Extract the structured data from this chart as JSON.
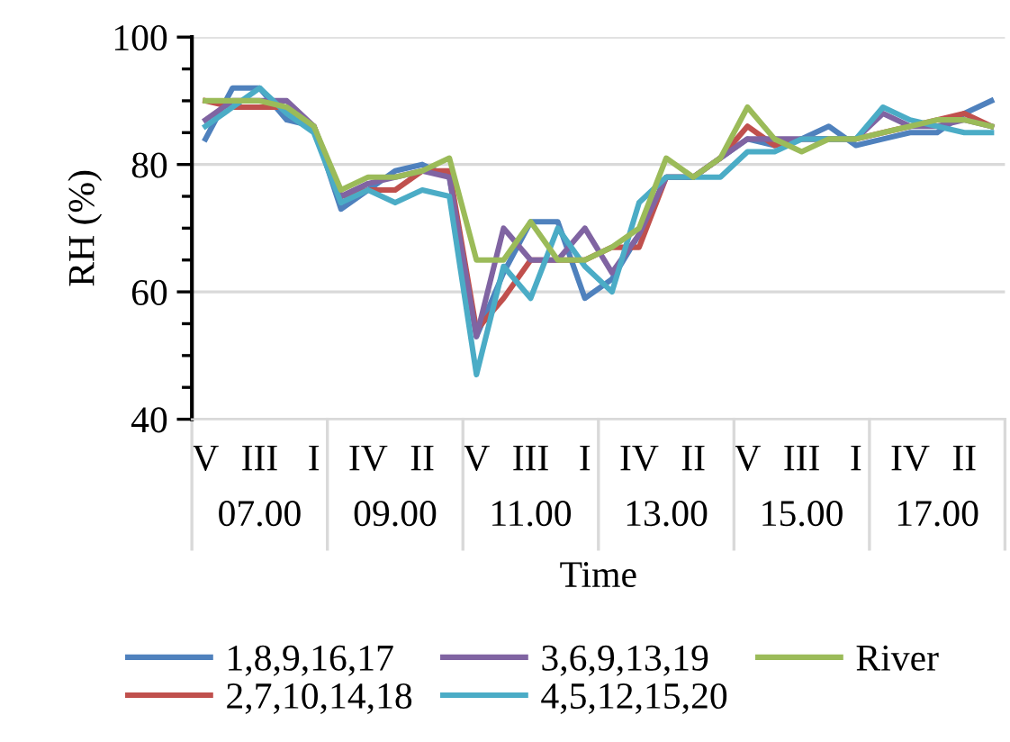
{
  "chart_data": {
    "type": "line",
    "xlabel": "Time",
    "ylabel": "RH (%)",
    "categories": [
      "V",
      null,
      "III",
      null,
      "I",
      null,
      "IV",
      null,
      "II",
      null,
      "V",
      null,
      "III",
      null,
      "I",
      null,
      "IV",
      null,
      "II",
      null,
      "V",
      null,
      "III",
      null,
      "I",
      null,
      "IV",
      null,
      "II",
      null
    ],
    "annotations": [
      "07.00",
      "09.00",
      "11.00",
      "13.00",
      "15.00",
      "17.00"
    ],
    "ylim": [
      40,
      100
    ],
    "yticks": [
      40,
      60,
      80,
      100
    ],
    "grid": "y",
    "legend": "bottom",
    "line_style": "solid",
    "marker": "none",
    "series": [
      {
        "name": "1,8,9,16,17",
        "color": "#4f81bd",
        "values": [
          84,
          92,
          92,
          87,
          86,
          73,
          76,
          79,
          80,
          78,
          53,
          63,
          71,
          71,
          59,
          62,
          69,
          78,
          78,
          81,
          84,
          83,
          84,
          86,
          83,
          84,
          85,
          85,
          88,
          90
        ]
      },
      {
        "name": "2,7,10,14,18",
        "color": "#c0504d",
        "values": [
          90,
          89,
          89,
          89,
          86,
          75,
          76,
          76,
          79,
          79,
          54,
          59,
          65,
          65,
          65,
          67,
          67,
          78,
          78,
          81,
          86,
          83,
          84,
          84,
          84,
          85,
          86,
          87,
          88,
          86
        ]
      },
      {
        "name": "3,6,9,13,19",
        "color": "#8064a2",
        "values": [
          87,
          90,
          90,
          90,
          86,
          75,
          77,
          78,
          79,
          78,
          53,
          70,
          65,
          65,
          70,
          63,
          69,
          78,
          78,
          81,
          84,
          84,
          84,
          84,
          84,
          88,
          86,
          86,
          87,
          86
        ]
      },
      {
        "name": "4,5,12,15,20",
        "color": "#4bacc6",
        "values": [
          86,
          89,
          92,
          88,
          85,
          74,
          76,
          74,
          76,
          75,
          47,
          64,
          59,
          70,
          64,
          60,
          74,
          78,
          78,
          78,
          82,
          82,
          84,
          84,
          84,
          89,
          87,
          86,
          85,
          85
        ]
      },
      {
        "name": "River",
        "color": "#9bbb59",
        "values": [
          90,
          90,
          90,
          89,
          86,
          76,
          78,
          78,
          79,
          81,
          65,
          65,
          71,
          65,
          65,
          67,
          70,
          81,
          78,
          81,
          89,
          84,
          82,
          84,
          84,
          85,
          86,
          87,
          87,
          86
        ]
      }
    ]
  }
}
